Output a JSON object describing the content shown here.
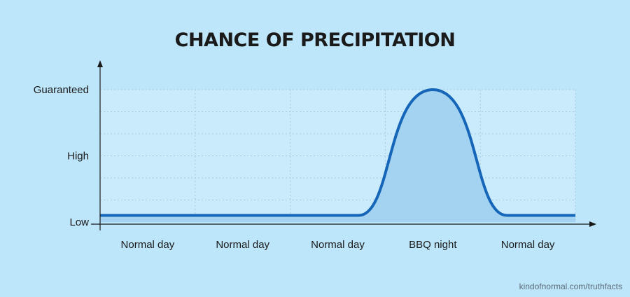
{
  "chart_data": {
    "type": "area",
    "title": "CHANCE OF PRECIPITATION",
    "xlabel": "",
    "ylabel": "",
    "y_levels": [
      "Low",
      "High",
      "Guaranteed"
    ],
    "y_level_values": [
      0,
      1,
      2
    ],
    "categories": [
      "Normal day",
      "Normal day",
      "Normal day",
      "BBQ night",
      "Normal day"
    ],
    "values": [
      0.1,
      0.1,
      0.1,
      2.0,
      0.1
    ],
    "ylim": [
      0,
      2
    ],
    "grid": true,
    "line_color": "#1565b8",
    "fill_color": "#a3d3f0",
    "plot_background": "#c9ebfc"
  },
  "credit": "kindofnormal.com/truthfacts"
}
